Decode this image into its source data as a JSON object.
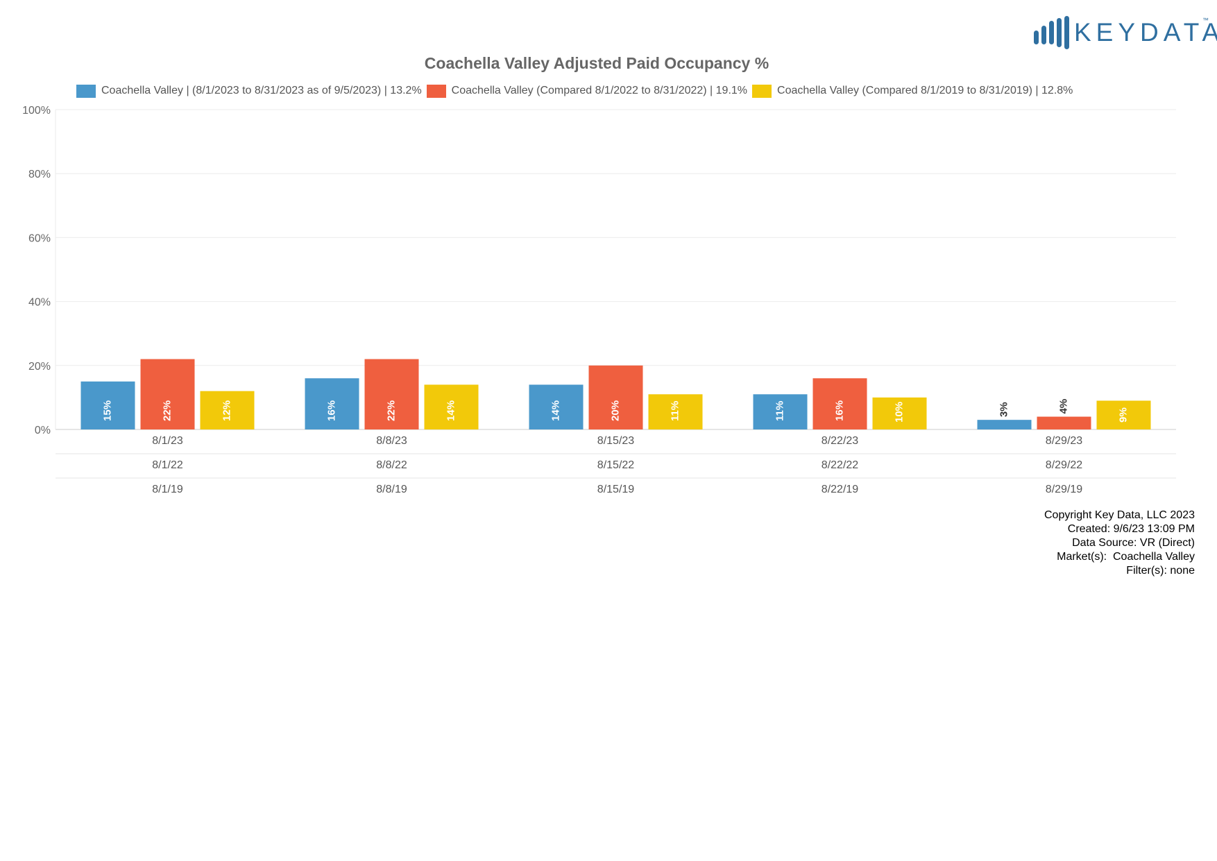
{
  "logo": {
    "text": "KEYDATA",
    "tm": "™",
    "color": "#2f6fa0"
  },
  "chart_data": {
    "type": "bar",
    "title": "Coachella Valley Adjusted Paid Occupancy %",
    "xlabel": "",
    "ylabel": "",
    "ylim": [
      0,
      100
    ],
    "y_ticks": [
      "0%",
      "20%",
      "40%",
      "60%",
      "80%",
      "100%"
    ],
    "y_tick_values": [
      0,
      20,
      40,
      60,
      80,
      100
    ],
    "grid": true,
    "legend_position": "top",
    "categories": [
      "8/1/23",
      "8/8/23",
      "8/15/23",
      "8/22/23",
      "8/29/23"
    ],
    "category_rows": [
      [
        "8/1/23",
        "8/8/23",
        "8/15/23",
        "8/22/23",
        "8/29/23"
      ],
      [
        "8/1/22",
        "8/8/22",
        "8/15/22",
        "8/22/22",
        "8/29/22"
      ],
      [
        "8/1/19",
        "8/8/19",
        "8/15/19",
        "8/22/19",
        "8/29/19"
      ]
    ],
    "series": [
      {
        "name": "Coachella Valley | (8/1/2023 to 8/31/2023 as of 9/5/2023) | 13.2%",
        "color": "#4a98cb",
        "values": [
          15,
          16,
          14,
          11,
          3
        ],
        "labels": [
          "15%",
          "16%",
          "14%",
          "11%",
          "3%"
        ]
      },
      {
        "name": "Coachella Valley (Compared 8/1/2022 to 8/31/2022) | 19.1%",
        "color": "#ef5f3f",
        "values": [
          22,
          22,
          20,
          16,
          4
        ],
        "labels": [
          "22%",
          "22%",
          "20%",
          "16%",
          "4%"
        ]
      },
      {
        "name": "Coachella Valley (Compared 8/1/2019 to 8/31/2019) | 12.8%",
        "color": "#f2c90a",
        "values": [
          12,
          14,
          11,
          10,
          9
        ],
        "labels": [
          "12%",
          "14%",
          "11%",
          "10%",
          "9%"
        ]
      }
    ]
  },
  "footer": {
    "copyright": "Copyright Key Data, LLC 2023",
    "created": "Created: 9/6/23 13:09 PM",
    "data_source": "Data Source: VR (Direct)",
    "markets": "Market(s):  Coachella Valley",
    "filters": "Filter(s): none"
  }
}
